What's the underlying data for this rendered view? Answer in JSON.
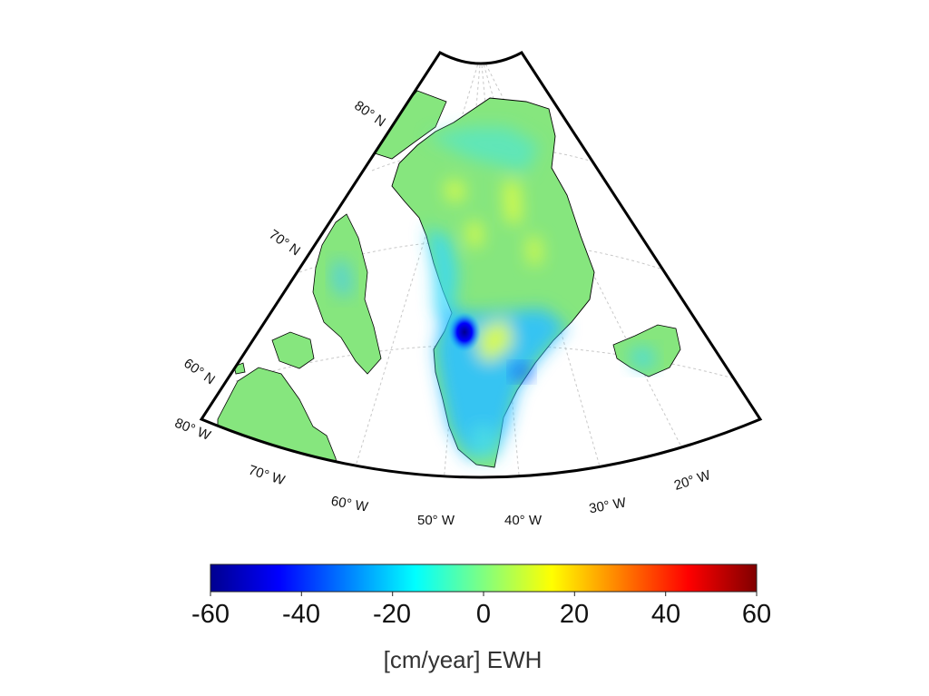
{
  "longitude_labels": [
    "80° W",
    "70° W",
    "60° W",
    "50° W",
    "40° W",
    "30° W",
    "20° W"
  ],
  "latitude_labels": [
    "80° N",
    "70° N",
    "60° N"
  ],
  "colorbar": {
    "ticks": [
      "-60",
      "-40",
      "-20",
      "0",
      "20",
      "40",
      "60"
    ],
    "label": "[cm/year] EWH",
    "colormap": [
      "#00008f",
      "#0000ff",
      "#00ffff",
      "#80ff80",
      "#ffff00",
      "#ff0000",
      "#800000"
    ]
  },
  "colors": {
    "land_neutral": "#86e67e",
    "frame": "#000000",
    "grid": "#c8c8c8"
  }
}
